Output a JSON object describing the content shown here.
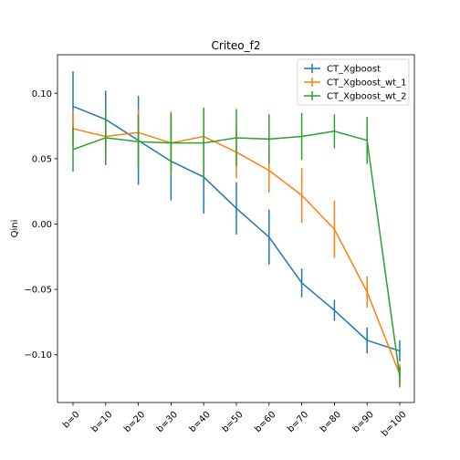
{
  "chart_data": {
    "type": "line",
    "title": "Criteo_f2",
    "xlabel": "",
    "ylabel": "Qini",
    "categories": [
      "b=0",
      "b=10",
      "b=20",
      "b=30",
      "b=40",
      "b=50",
      "b=60",
      "b=70",
      "b=80",
      "b=90",
      "b=100"
    ],
    "ylim": [
      -0.1365,
      0.1295
    ],
    "yticks": [
      -0.1,
      -0.05,
      0.0,
      0.05,
      0.1
    ],
    "ytick_labels": [
      "−0.10",
      "−0.05",
      "0.00",
      "0.05",
      "0.10"
    ],
    "grid": false,
    "legend": "top-right",
    "series": [
      {
        "name": "CT_Xgboost",
        "color": "#1f77b4",
        "values": [
          0.09,
          0.08,
          0.064,
          0.048,
          0.036,
          0.012,
          -0.01,
          -0.045,
          -0.066,
          -0.089,
          -0.097
        ],
        "errors": [
          0.027,
          0.022,
          0.034,
          0.03,
          0.028,
          0.02,
          0.021,
          0.011,
          0.008,
          0.01,
          0.008
        ]
      },
      {
        "name": "CT_Xgboost_wt_1",
        "color": "#ff7f0e",
        "values": [
          0.073,
          0.067,
          0.07,
          0.062,
          0.067,
          0.055,
          0.041,
          0.022,
          -0.004,
          -0.052,
          -0.115
        ],
        "errors": [
          0.014,
          0.02,
          0.018,
          0.024,
          0.016,
          0.02,
          0.017,
          0.021,
          0.022,
          0.012,
          0.008
        ]
      },
      {
        "name": "CT_Xgboost_wt_2",
        "color": "#2ca02c",
        "values": [
          0.057,
          0.066,
          0.063,
          0.062,
          0.062,
          0.066,
          0.065,
          0.067,
          0.071,
          0.064,
          -0.117
        ],
        "errors": [
          0.017,
          0.021,
          0.021,
          0.023,
          0.027,
          0.022,
          0.019,
          0.018,
          0.013,
          0.018,
          0.008
        ]
      }
    ]
  }
}
